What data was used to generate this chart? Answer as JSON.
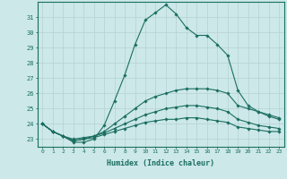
{
  "title": "",
  "xlabel": "Humidex (Indice chaleur)",
  "ylabel": "",
  "background_color": "#cce8e8",
  "grid_color": "#b8d4d4",
  "line_color": "#1a6e60",
  "xlim": [
    -0.5,
    23.5
  ],
  "ylim": [
    22.5,
    32.0
  ],
  "yticks": [
    23,
    24,
    25,
    26,
    27,
    28,
    29,
    30,
    31
  ],
  "xticks": [
    0,
    1,
    2,
    3,
    4,
    5,
    6,
    7,
    8,
    9,
    10,
    11,
    12,
    13,
    14,
    15,
    16,
    17,
    18,
    19,
    20,
    21,
    22,
    23
  ],
  "series": [
    [
      24.0,
      23.5,
      23.2,
      22.8,
      22.8,
      23.0,
      23.9,
      25.5,
      27.2,
      29.2,
      30.8,
      31.3,
      31.8,
      31.2,
      30.3,
      29.8,
      29.8,
      29.2,
      28.5,
      26.2,
      25.2,
      24.8,
      24.5,
      24.3
    ],
    [
      24.0,
      23.5,
      23.2,
      23.0,
      23.1,
      23.2,
      23.5,
      24.0,
      24.5,
      25.0,
      25.5,
      25.8,
      26.0,
      26.2,
      26.3,
      26.3,
      26.3,
      26.2,
      26.0,
      25.2,
      25.0,
      24.8,
      24.6,
      24.4
    ],
    [
      24.0,
      23.5,
      23.2,
      22.9,
      23.0,
      23.2,
      23.4,
      23.7,
      24.0,
      24.3,
      24.6,
      24.8,
      25.0,
      25.1,
      25.2,
      25.2,
      25.1,
      25.0,
      24.8,
      24.3,
      24.1,
      23.9,
      23.8,
      23.7
    ],
    [
      24.0,
      23.5,
      23.2,
      22.9,
      23.0,
      23.1,
      23.3,
      23.5,
      23.7,
      23.9,
      24.1,
      24.2,
      24.3,
      24.3,
      24.4,
      24.4,
      24.3,
      24.2,
      24.1,
      23.8,
      23.7,
      23.6,
      23.5,
      23.5
    ]
  ]
}
